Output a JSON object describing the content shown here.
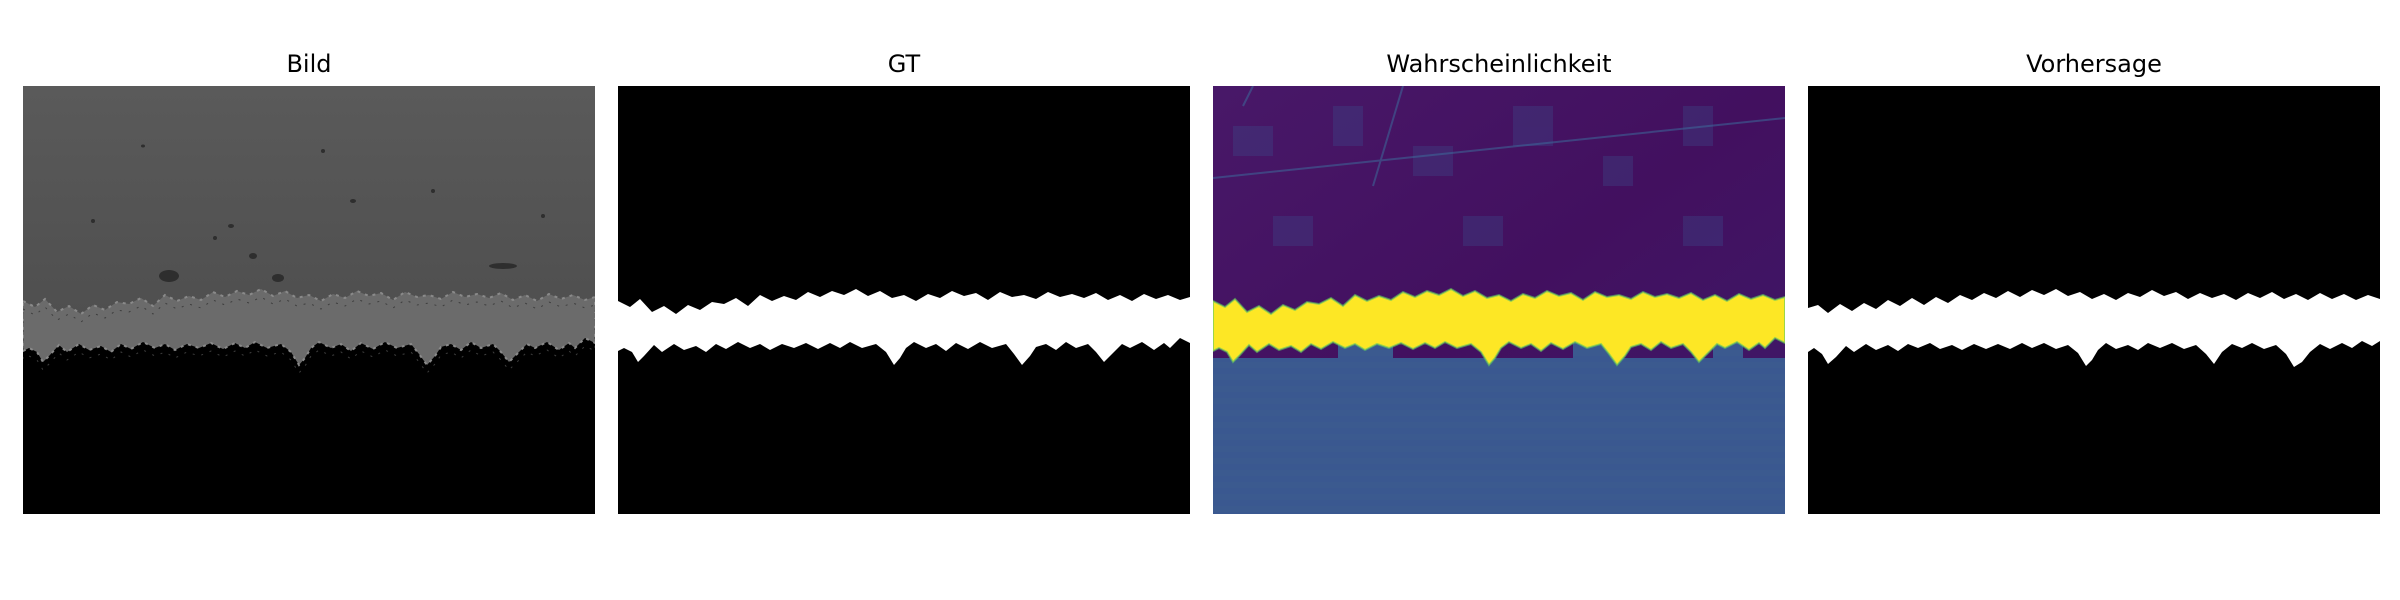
{
  "panels": [
    {
      "title": "Bild"
    },
    {
      "title": "GT"
    },
    {
      "title": "Wahrscheinlichkeit"
    },
    {
      "title": "Vorhersage"
    }
  ],
  "colors": {
    "background": "#ffffff",
    "mask_foreground": "#ffffff",
    "mask_background": "#000000",
    "micrograph_gray": "#565656",
    "probability_low": "#46085c",
    "probability_high": "#fde725",
    "probability_mid": "#3b5a8f"
  }
}
